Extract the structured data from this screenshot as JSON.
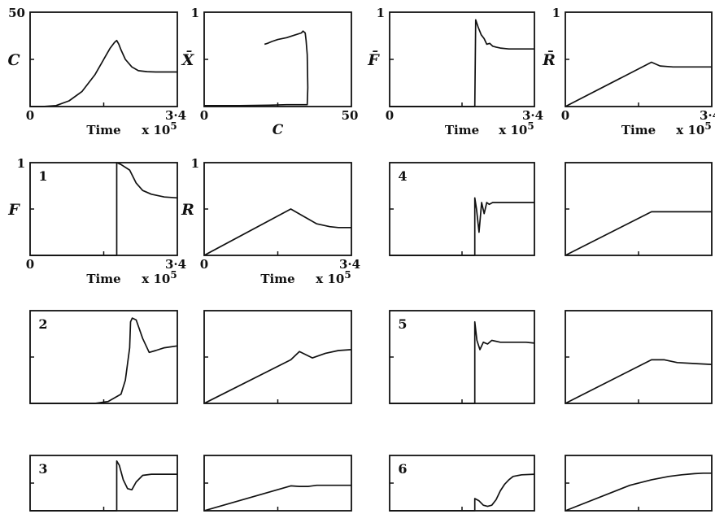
{
  "chart_data": [
    {
      "id": "c-top-1",
      "type": "line",
      "ylabel": "C",
      "ytick_top": "50",
      "ytick_bottom": "0",
      "xtick_right": "3·4",
      "xlabel": "Time",
      "xscale_label": "x 10",
      "xscale_exp": "5",
      "xlim": [
        0,
        3.4
      ],
      "ylim": [
        0,
        50
      ],
      "series": [
        {
          "x": [
            0,
            0.3,
            0.6,
            0.9,
            1.2,
            1.5,
            1.7,
            1.85,
            1.95,
            2.0,
            2.05,
            2.1,
            2.2,
            2.35,
            2.5,
            2.7,
            2.9,
            3.1,
            3.4
          ],
          "y": [
            0,
            0,
            0.5,
            3,
            8,
            17,
            25,
            31,
            34,
            35,
            33,
            30,
            25,
            21,
            19,
            18.5,
            18.3,
            18.3,
            18.3
          ]
        }
      ]
    },
    {
      "id": "c-top-2",
      "type": "line",
      "ylabel": "X̄",
      "ytick_top": "1",
      "ytick_bottom": "0",
      "xtick_right": "50",
      "xlabel": "C",
      "xlim": [
        0,
        50
      ],
      "ylim": [
        0,
        1
      ],
      "series": [
        {
          "x": [
            0,
            12,
            22,
            28,
            33,
            35,
            35.2,
            35,
            34.6,
            34.3,
            33.6,
            33,
            31,
            28,
            25,
            23,
            21.5,
            20.5
          ],
          "y": [
            0.01,
            0.01,
            0.015,
            0.02,
            0.02,
            0.02,
            0.2,
            0.55,
            0.7,
            0.78,
            0.8,
            0.78,
            0.76,
            0.73,
            0.71,
            0.69,
            0.67,
            0.66
          ]
        }
      ]
    },
    {
      "id": "c-top-3",
      "type": "line",
      "ylabel": "F̄",
      "ytick_top": "1",
      "ytick_bottom": "0",
      "xtick_right": "3·4",
      "xlabel": "Time",
      "xscale_label": "x 10",
      "xscale_exp": "5",
      "xlim": [
        0,
        3.4
      ],
      "ylim": [
        0,
        1
      ],
      "series": [
        {
          "x": [
            0,
            1.95,
            2.0,
            2.02,
            2.08,
            2.15,
            2.22,
            2.28,
            2.35,
            2.42,
            2.5,
            2.6,
            2.8,
            3.1,
            3.4
          ],
          "y": [
            0,
            0,
            0,
            0.92,
            0.84,
            0.76,
            0.72,
            0.66,
            0.67,
            0.64,
            0.63,
            0.62,
            0.61,
            0.61,
            0.61
          ]
        }
      ]
    },
    {
      "id": "c-top-4",
      "type": "line",
      "ylabel": "R̄",
      "ytick_top": "1",
      "ytick_bottom": "0",
      "xtick_right": "3·4",
      "xlabel": "Time",
      "xscale_label": "x 10",
      "xscale_exp": "5",
      "xlim": [
        0,
        3.4
      ],
      "ylim": [
        0,
        1
      ],
      "series": [
        {
          "x": [
            0,
            2.0,
            2.2,
            2.5,
            2.8,
            3.1,
            3.4
          ],
          "y": [
            0,
            0.47,
            0.43,
            0.42,
            0.42,
            0.42,
            0.42
          ]
        }
      ]
    },
    {
      "id": "c-r2-1",
      "type": "line",
      "ylabel": "F",
      "ytick_top": "1",
      "ytick_bottom": "0",
      "xtick_right": "3·4",
      "xlabel": "Time",
      "xscale_label": "x 10",
      "xscale_exp": "5",
      "panel_number": "1",
      "xlim": [
        0,
        3.4
      ],
      "ylim": [
        0,
        1
      ],
      "series": [
        {
          "x": [
            0,
            2.0,
            2.0,
            2.1,
            2.3,
            2.45,
            2.6,
            2.8,
            3.1,
            3.4
          ],
          "y": [
            0,
            0,
            1.0,
            0.98,
            0.92,
            0.78,
            0.7,
            0.66,
            0.63,
            0.62
          ]
        }
      ]
    },
    {
      "id": "c-r2-2",
      "type": "line",
      "ylabel": "R",
      "ytick_top": "1",
      "ytick_bottom": "0",
      "xtick_right": "3·4",
      "xlabel": "Time",
      "xscale_label": "x 10",
      "xscale_exp": "5",
      "xlim": [
        0,
        3.4
      ],
      "ylim": [
        0,
        1
      ],
      "series": [
        {
          "x": [
            0,
            2.0,
            2.3,
            2.6,
            2.9,
            3.1,
            3.4
          ],
          "y": [
            0,
            0.5,
            0.42,
            0.34,
            0.31,
            0.3,
            0.3
          ]
        }
      ]
    },
    {
      "id": "c-r2-3",
      "type": "line",
      "panel_number": "4",
      "xlim": [
        0,
        3.4
      ],
      "ylim": [
        0,
        1
      ],
      "series": [
        {
          "x": [
            0,
            2.0,
            2.0,
            2.04,
            2.1,
            2.16,
            2.22,
            2.28,
            2.34,
            2.42,
            2.5,
            2.8,
            3.1,
            3.4
          ],
          "y": [
            0,
            0,
            0.62,
            0.5,
            0.25,
            0.57,
            0.45,
            0.57,
            0.55,
            0.57,
            0.57,
            0.57,
            0.57,
            0.57
          ]
        }
      ]
    },
    {
      "id": "c-r2-4",
      "type": "line",
      "xlim": [
        0,
        3.4
      ],
      "ylim": [
        0,
        1
      ],
      "series": [
        {
          "x": [
            0,
            2.0,
            2.3,
            2.6,
            3.0,
            3.4
          ],
          "y": [
            0,
            0.47,
            0.47,
            0.47,
            0.47,
            0.47
          ]
        }
      ]
    },
    {
      "id": "c-r3-1",
      "type": "line",
      "panel_number": "2",
      "xlim": [
        0,
        3.4
      ],
      "ylim": [
        0,
        1
      ],
      "series": [
        {
          "x": [
            0,
            1.5,
            1.8,
            2.1,
            2.2,
            2.3,
            2.32,
            2.36,
            2.45,
            2.6,
            2.75,
            2.9,
            3.1,
            3.4
          ],
          "y": [
            0,
            0,
            0.02,
            0.1,
            0.25,
            0.6,
            0.88,
            0.92,
            0.9,
            0.7,
            0.55,
            0.57,
            0.6,
            0.62
          ]
        }
      ]
    },
    {
      "id": "c-r3-2",
      "type": "line",
      "xlim": [
        0,
        3.4
      ],
      "ylim": [
        0,
        1
      ],
      "series": [
        {
          "x": [
            0,
            2.0,
            2.2,
            2.5,
            2.8,
            3.1,
            3.4
          ],
          "y": [
            0,
            0.47,
            0.56,
            0.49,
            0.54,
            0.57,
            0.58
          ]
        }
      ]
    },
    {
      "id": "c-r3-3",
      "type": "line",
      "panel_number": "5",
      "xlim": [
        0,
        3.4
      ],
      "ylim": [
        0,
        1
      ],
      "series": [
        {
          "x": [
            0,
            2.0,
            2.0,
            2.05,
            2.12,
            2.2,
            2.3,
            2.4,
            2.6,
            2.9,
            3.2,
            3.4
          ],
          "y": [
            0,
            0,
            0.88,
            0.68,
            0.58,
            0.66,
            0.64,
            0.68,
            0.66,
            0.66,
            0.66,
            0.65
          ]
        }
      ]
    },
    {
      "id": "c-r3-4",
      "type": "line",
      "xlim": [
        0,
        3.4
      ],
      "ylim": [
        0,
        1
      ],
      "series": [
        {
          "x": [
            0,
            2.0,
            2.3,
            2.6,
            3.0,
            3.4
          ],
          "y": [
            0,
            0.47,
            0.47,
            0.44,
            0.43,
            0.42
          ]
        }
      ]
    },
    {
      "id": "c-r4-1",
      "type": "line",
      "panel_number": "3",
      "xlim": [
        0,
        3.4
      ],
      "ylim": [
        0,
        1
      ],
      "series": [
        {
          "x": [
            0,
            2.0,
            2.0,
            2.06,
            2.15,
            2.25,
            2.35,
            2.45,
            2.6,
            2.8,
            3.1,
            3.4
          ],
          "y": [
            0,
            0,
            0.9,
            0.82,
            0.56,
            0.4,
            0.38,
            0.52,
            0.64,
            0.66,
            0.66,
            0.66
          ]
        }
      ]
    },
    {
      "id": "c-r4-2",
      "type": "line",
      "xlim": [
        0,
        3.4
      ],
      "ylim": [
        0,
        1
      ],
      "series": [
        {
          "x": [
            0,
            2.0,
            2.2,
            2.4,
            2.6,
            3.0,
            3.4
          ],
          "y": [
            0,
            0.45,
            0.44,
            0.44,
            0.46,
            0.46,
            0.46
          ]
        }
      ]
    },
    {
      "id": "c-r4-3",
      "type": "line",
      "panel_number": "6",
      "xlim": [
        0,
        3.4
      ],
      "ylim": [
        0,
        1
      ],
      "series": [
        {
          "x": [
            0,
            2.0,
            2.0,
            2.1,
            2.2,
            2.3,
            2.4,
            2.5,
            2.6,
            2.7,
            2.8,
            2.9,
            3.1,
            3.4
          ],
          "y": [
            0,
            0,
            0.22,
            0.18,
            0.1,
            0.08,
            0.1,
            0.2,
            0.36,
            0.48,
            0.56,
            0.62,
            0.65,
            0.66
          ]
        }
      ]
    },
    {
      "id": "c-r4-4",
      "type": "line",
      "xlim": [
        0,
        3.4
      ],
      "ylim": [
        0,
        1
      ],
      "series": [
        {
          "x": [
            0,
            1.5,
            2.0,
            2.4,
            2.7,
            3.0,
            3.2,
            3.4
          ],
          "y": [
            0,
            0.46,
            0.56,
            0.62,
            0.65,
            0.67,
            0.68,
            0.68
          ]
        }
      ]
    }
  ]
}
